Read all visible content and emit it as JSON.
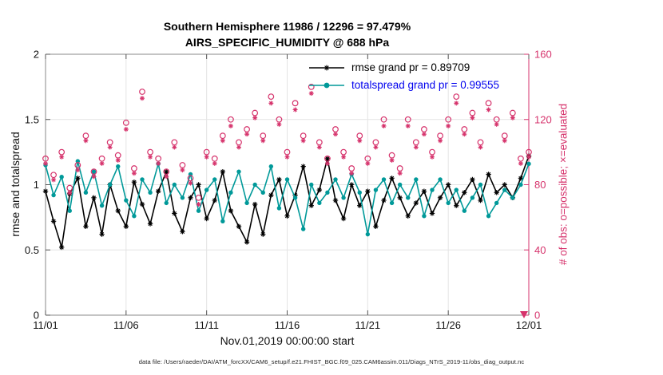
{
  "footer": "data file: /Users/raeder/DAI/ATM_forcXX/CAM6_setup/f.e21.FHIST_BGC.f09_025.CAM6assim.011/Diags_NTrS_2019-11/obs_diag_output.nc",
  "chart_data": {
    "type": "line",
    "title": "Southern Hemisphere 11986 / 12296 = 97.479%",
    "subtitle": "AIRS_SPECIFIC_HUMIDITY @ 688 hPa",
    "grid": true,
    "legend_position": "top-center-inside",
    "x_axis": {
      "label": "Nov.01,2019 00:00:00 start",
      "min_day": 0,
      "max_day": 30,
      "start": 0,
      "step": 0.5,
      "tick_positions_days": [
        0,
        5,
        10,
        15,
        20,
        25,
        30
      ],
      "tick_labels": [
        "11/01",
        "11/06",
        "11/11",
        "11/16",
        "11/21",
        "11/26",
        "12/01"
      ]
    },
    "y_axis_left": {
      "label": "rmse and totalspread",
      "min": 0,
      "max": 2,
      "ticks": [
        0,
        0.5,
        1,
        1.5,
        2
      ]
    },
    "y_axis_right": {
      "label": "# of obs: o=possible; ×=evaluated",
      "min": 0,
      "max": 160,
      "ticks": [
        0,
        40,
        80,
        120,
        160
      ],
      "color": "#d6336c"
    },
    "right_axis_bottom_arrow": true,
    "series": [
      {
        "name": "rmse",
        "legend_label": "rmse grand pr = 0.89709",
        "legend_text_color": "#000000",
        "axis": "left",
        "color": "#000000",
        "marker": "asterisk",
        "line": true,
        "values": [
          0.95,
          0.72,
          0.52,
          0.93,
          1.05,
          0.68,
          0.9,
          0.62,
          1.0,
          0.8,
          0.68,
          1.02,
          0.85,
          0.7,
          0.95,
          1.1,
          0.78,
          0.64,
          0.9,
          1.0,
          0.74,
          0.88,
          1.1,
          0.8,
          0.68,
          0.56,
          0.85,
          0.62,
          0.92,
          1.04,
          0.76,
          0.92,
          1.14,
          0.84,
          0.96,
          1.2,
          0.88,
          0.74,
          1.0,
          0.84,
          0.95,
          0.68,
          0.88,
          1.05,
          0.9,
          0.76,
          0.86,
          0.95,
          0.78,
          0.9,
          1.0,
          0.84,
          0.94,
          1.04,
          0.88,
          1.08,
          0.94,
          1.0,
          0.9,
          1.05,
          1.22
        ]
      },
      {
        "name": "totalspread",
        "legend_label": "totalspread grand pr = 0.99555",
        "legend_text_color": "#0000ee",
        "axis": "left",
        "color": "#009999",
        "marker": "dot",
        "line": true,
        "values": [
          1.15,
          0.92,
          1.06,
          0.8,
          1.18,
          0.94,
          1.1,
          0.84,
          1.0,
          1.14,
          0.88,
          0.76,
          1.04,
          0.94,
          1.16,
          0.86,
          1.0,
          0.9,
          1.08,
          0.8,
          0.96,
          1.04,
          0.72,
          0.94,
          1.1,
          0.86,
          1.0,
          0.94,
          1.14,
          0.82,
          1.04,
          0.9,
          0.66,
          1.0,
          0.86,
          0.94,
          1.04,
          0.9,
          1.08,
          0.94,
          0.62,
          0.96,
          1.04,
          0.86,
          1.0,
          0.9,
          1.04,
          0.76,
          0.96,
          1.04,
          0.86,
          0.96,
          0.8,
          0.9,
          1.0,
          0.76,
          0.86,
          0.96,
          0.9,
          1.0,
          1.16
        ]
      },
      {
        "name": "possible_obs",
        "legend_label": null,
        "axis": "right",
        "color": "#d6336c",
        "marker": "circle-open",
        "line": false,
        "values": [
          96,
          86,
          100,
          78,
          92,
          110,
          88,
          96,
          106,
          98,
          118,
          90,
          137,
          100,
          96,
          88,
          106,
          92,
          84,
          72,
          100,
          96,
          110,
          120,
          106,
          114,
          124,
          110,
          134,
          120,
          100,
          130,
          110,
          140,
          106,
          96,
          114,
          100,
          90,
          110,
          96,
          106,
          120,
          98,
          90,
          120,
          106,
          114,
          100,
          110,
          120,
          134,
          114,
          124,
          106,
          130,
          120,
          110,
          124,
          96,
          100
        ]
      },
      {
        "name": "evaluated_obs",
        "legend_label": null,
        "axis": "right",
        "color": "#d6336c",
        "marker": "asterisk",
        "line": false,
        "values": [
          93,
          83,
          97,
          75,
          89,
          107,
          85,
          93,
          103,
          95,
          114,
          87,
          133,
          97,
          93,
          85,
          103,
          89,
          81,
          68,
          97,
          93,
          107,
          116,
          103,
          111,
          121,
          107,
          130,
          117,
          97,
          126,
          107,
          136,
          103,
          93,
          111,
          97,
          87,
          107,
          93,
          103,
          116,
          95,
          87,
          116,
          103,
          111,
          97,
          107,
          116,
          130,
          111,
          121,
          103,
          126,
          117,
          107,
          121,
          93,
          97
        ]
      }
    ]
  }
}
